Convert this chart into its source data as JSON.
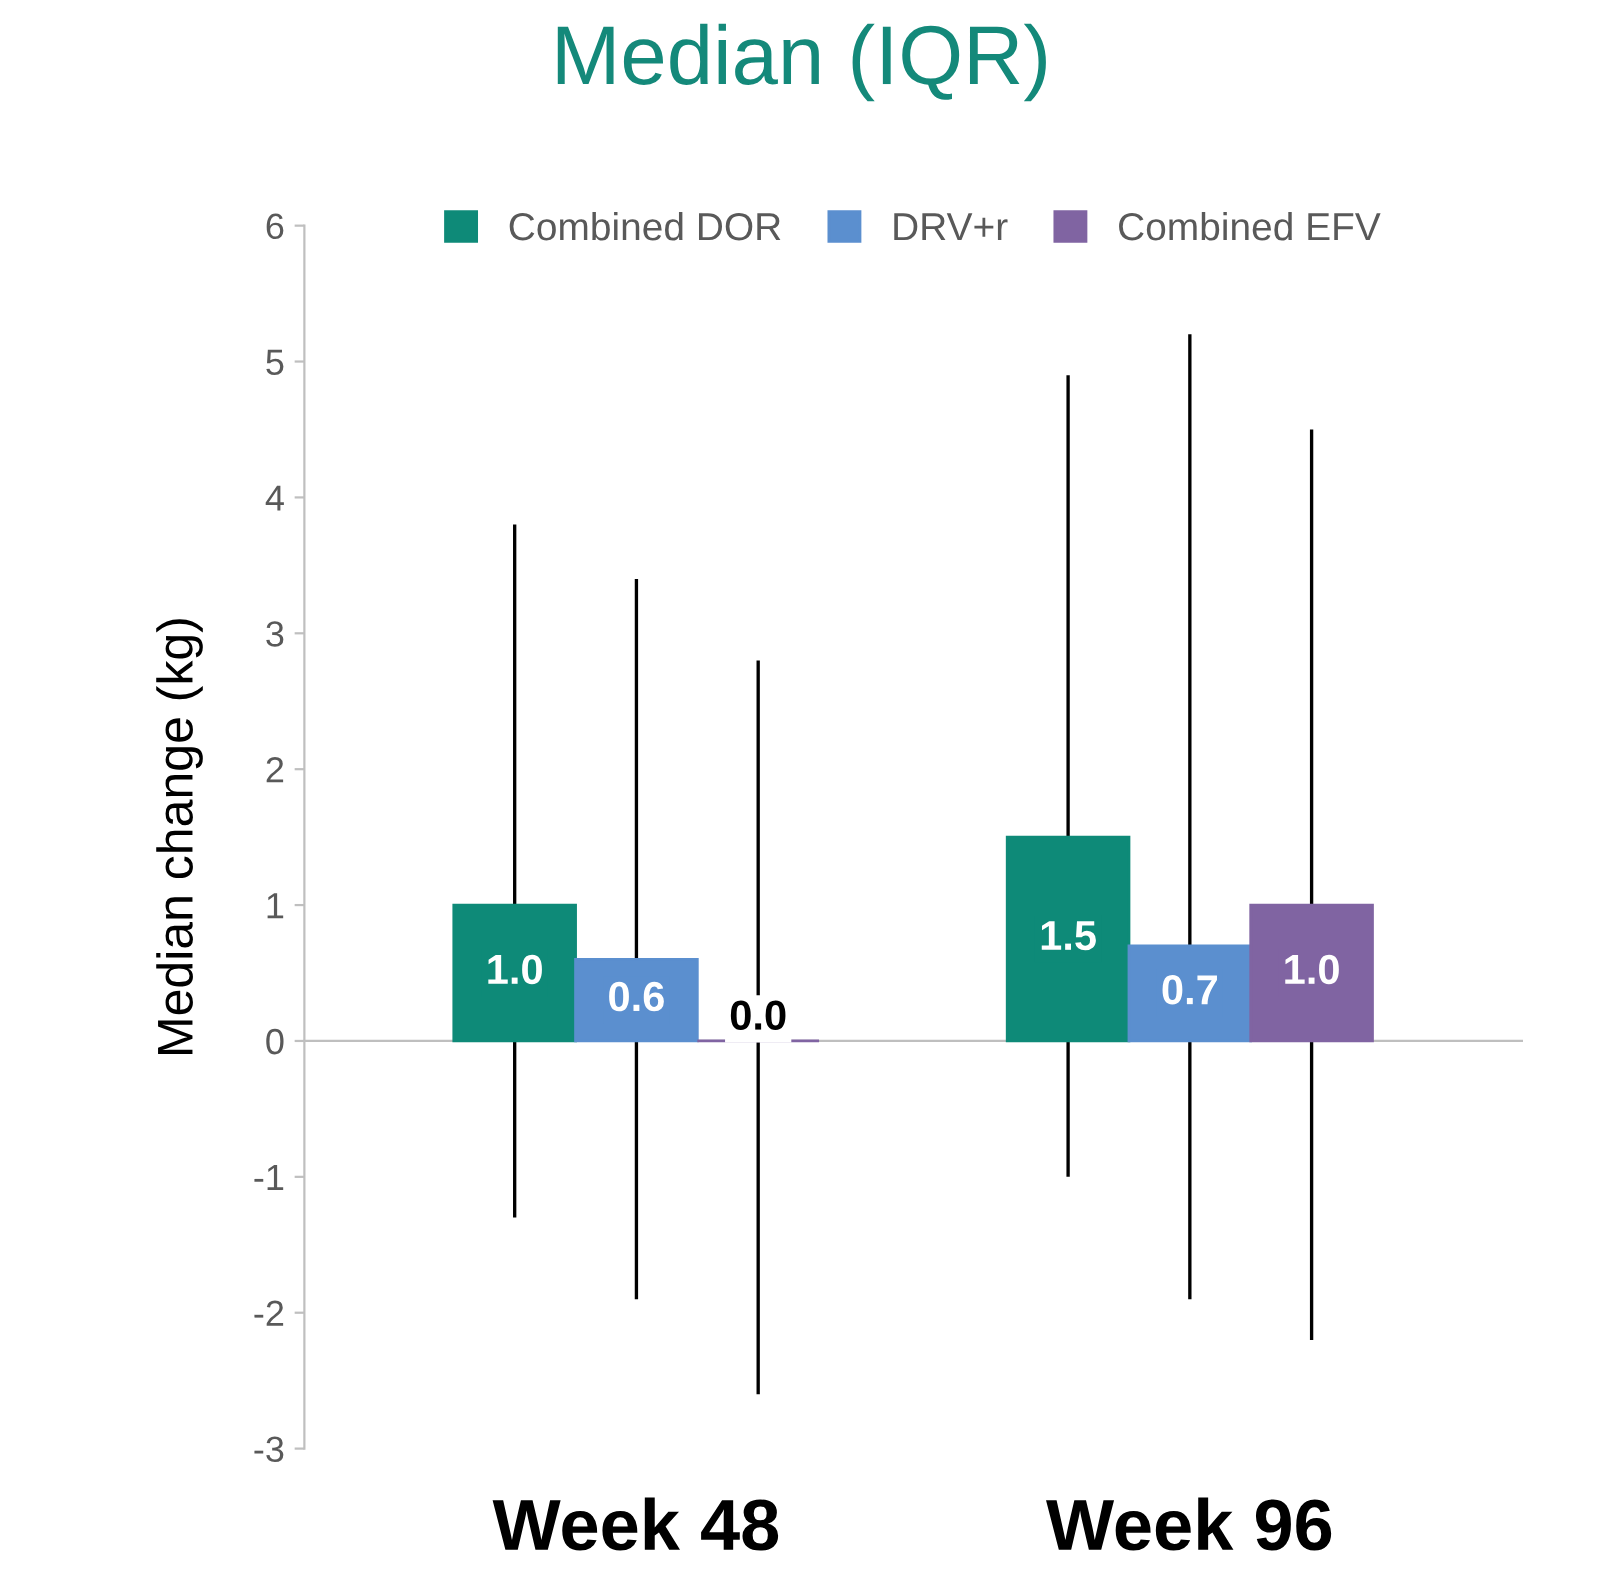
{
  "chart_data": {
    "type": "bar",
    "title": "Median (IQR)",
    "ylabel": "Median change (kg)",
    "categories": [
      "Week 48",
      "Week 96"
    ],
    "series": [
      {
        "name": "Combined DOR",
        "color": "#0e8a78",
        "values": [
          1.0,
          1.5
        ],
        "value_labels": [
          "1.0",
          "1.5"
        ],
        "errors": [
          [
            -1.3,
            3.8
          ],
          [
            -1.0,
            4.9
          ]
        ]
      },
      {
        "name": "DRV+r",
        "color": "#5b8fcf",
        "values": [
          0.6,
          0.7
        ],
        "value_labels": [
          "0.6",
          "0.7"
        ],
        "errors": [
          [
            -1.9,
            3.4
          ],
          [
            -1.9,
            5.2
          ]
        ]
      },
      {
        "name": "Combined EFV",
        "color": "#8064a2",
        "values": [
          0.0,
          1.0
        ],
        "value_labels": [
          "0.0",
          "1.0"
        ],
        "errors": [
          [
            -2.6,
            2.8
          ],
          [
            -2.2,
            4.5
          ]
        ]
      }
    ],
    "ylim": [
      -3,
      6
    ],
    "yticks": [
      -3,
      -2,
      -1,
      0,
      1,
      2,
      3,
      4,
      5,
      6
    ],
    "legend": "top",
    "grid": false
  }
}
